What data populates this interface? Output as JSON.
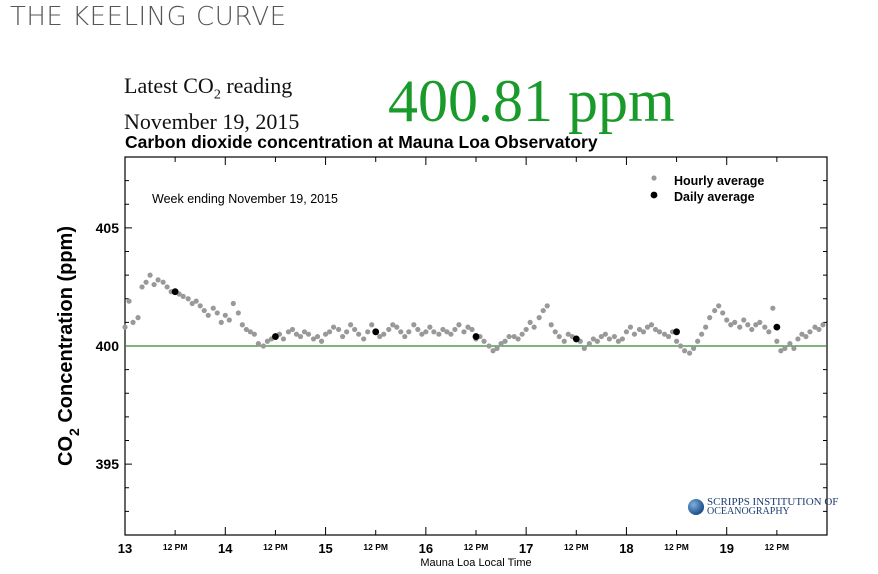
{
  "page": {
    "site_title": "THE KEELING CURVE"
  },
  "latest": {
    "line1_pre": "Latest CO",
    "line1_sub": "2",
    "line1_post": " reading",
    "date": "November 19, 2015",
    "value_text": "400.81 ppm"
  },
  "logo": {
    "line1": "SCRIPPS INSTITUTION OF",
    "line2": "OCEANOGRAPHY"
  },
  "colors": {
    "value_green": "#1a9a2a",
    "hourly_gray": "#999999",
    "daily_black": "#000000",
    "reference_line": "#2e8b2e"
  },
  "chart_data": {
    "type": "scatter",
    "title": "Carbon dioxide concentration at Mauna Loa Observatory",
    "annotation": "Week ending November 19, 2015",
    "xlabel": "Mauna Loa Local Time",
    "ylabel_pre": "CO",
    "ylabel_sub": "2",
    "ylabel_post": " Concentration (ppm)",
    "xlim": [
      13,
      20
    ],
    "ylim": [
      392,
      408
    ],
    "yticks": [
      395,
      400,
      405
    ],
    "xticks_major": [
      {
        "x": 13,
        "label": "13"
      },
      {
        "x": 14,
        "label": "14"
      },
      {
        "x": 15,
        "label": "15"
      },
      {
        "x": 16,
        "label": "16"
      },
      {
        "x": 17,
        "label": "17"
      },
      {
        "x": 18,
        "label": "18"
      },
      {
        "x": 19,
        "label": "19"
      }
    ],
    "xticks_minor": [
      {
        "x": 13.5,
        "label": "12 PM"
      },
      {
        "x": 14.5,
        "label": "12 PM"
      },
      {
        "x": 15.5,
        "label": "12 PM"
      },
      {
        "x": 16.5,
        "label": "12 PM"
      },
      {
        "x": 17.5,
        "label": "12 PM"
      },
      {
        "x": 18.5,
        "label": "12 PM"
      },
      {
        "x": 19.5,
        "label": "12 PM"
      }
    ],
    "reference_line_y": 400,
    "legend_position": "top-right",
    "series": [
      {
        "name": "Hourly average",
        "marker": "gray-dot",
        "points": [
          [
            13.0,
            400.8
          ],
          [
            13.04,
            401.9
          ],
          [
            13.08,
            401.0
          ],
          [
            13.13,
            401.2
          ],
          [
            13.17,
            402.5
          ],
          [
            13.21,
            402.7
          ],
          [
            13.25,
            403.0
          ],
          [
            13.29,
            402.6
          ],
          [
            13.33,
            402.8
          ],
          [
            13.38,
            402.7
          ],
          [
            13.42,
            402.5
          ],
          [
            13.46,
            402.3
          ],
          [
            13.5,
            402.3
          ],
          [
            13.54,
            402.2
          ],
          [
            13.58,
            402.1
          ],
          [
            13.63,
            402.0
          ],
          [
            13.67,
            401.8
          ],
          [
            13.71,
            401.9
          ],
          [
            13.75,
            401.7
          ],
          [
            13.79,
            401.5
          ],
          [
            13.83,
            401.3
          ],
          [
            13.88,
            401.6
          ],
          [
            13.92,
            401.4
          ],
          [
            13.96,
            401.0
          ],
          [
            14.0,
            401.3
          ],
          [
            14.04,
            401.1
          ],
          [
            14.08,
            401.8
          ],
          [
            14.13,
            401.4
          ],
          [
            14.17,
            400.9
          ],
          [
            14.21,
            400.7
          ],
          [
            14.25,
            400.6
          ],
          [
            14.29,
            400.5
          ],
          [
            14.33,
            400.1
          ],
          [
            14.38,
            400.0
          ],
          [
            14.42,
            400.2
          ],
          [
            14.46,
            400.3
          ],
          [
            14.5,
            400.4
          ],
          [
            14.54,
            400.5
          ],
          [
            14.58,
            400.3
          ],
          [
            14.63,
            400.6
          ],
          [
            14.67,
            400.7
          ],
          [
            14.71,
            400.5
          ],
          [
            14.75,
            400.4
          ],
          [
            14.79,
            400.6
          ],
          [
            14.83,
            400.5
          ],
          [
            14.88,
            400.3
          ],
          [
            14.92,
            400.4
          ],
          [
            14.96,
            400.2
          ],
          [
            15.0,
            400.5
          ],
          [
            15.04,
            400.6
          ],
          [
            15.08,
            400.8
          ],
          [
            15.13,
            400.7
          ],
          [
            15.17,
            400.4
          ],
          [
            15.21,
            400.6
          ],
          [
            15.25,
            400.9
          ],
          [
            15.29,
            400.7
          ],
          [
            15.33,
            400.5
          ],
          [
            15.38,
            400.3
          ],
          [
            15.42,
            400.6
          ],
          [
            15.46,
            400.9
          ],
          [
            15.5,
            400.6
          ],
          [
            15.54,
            400.4
          ],
          [
            15.58,
            400.5
          ],
          [
            15.63,
            400.7
          ],
          [
            15.67,
            400.9
          ],
          [
            15.71,
            400.8
          ],
          [
            15.75,
            400.6
          ],
          [
            15.79,
            400.4
          ],
          [
            15.83,
            400.6
          ],
          [
            15.88,
            400.9
          ],
          [
            15.92,
            400.7
          ],
          [
            15.96,
            400.5
          ],
          [
            16.0,
            400.6
          ],
          [
            16.04,
            400.8
          ],
          [
            16.08,
            400.6
          ],
          [
            16.13,
            400.5
          ],
          [
            16.17,
            400.7
          ],
          [
            16.21,
            400.6
          ],
          [
            16.25,
            400.5
          ],
          [
            16.29,
            400.7
          ],
          [
            16.33,
            400.9
          ],
          [
            16.38,
            400.6
          ],
          [
            16.42,
            400.8
          ],
          [
            16.46,
            400.7
          ],
          [
            16.5,
            400.3
          ],
          [
            16.54,
            400.4
          ],
          [
            16.58,
            400.2
          ],
          [
            16.63,
            400.0
          ],
          [
            16.67,
            399.8
          ],
          [
            16.71,
            399.9
          ],
          [
            16.75,
            400.1
          ],
          [
            16.79,
            400.2
          ],
          [
            16.83,
            400.4
          ],
          [
            16.88,
            400.4
          ],
          [
            16.92,
            400.3
          ],
          [
            16.96,
            400.5
          ],
          [
            17.0,
            400.7
          ],
          [
            17.04,
            401.0
          ],
          [
            17.08,
            400.8
          ],
          [
            17.13,
            401.2
          ],
          [
            17.17,
            401.5
          ],
          [
            17.21,
            401.7
          ],
          [
            17.25,
            400.9
          ],
          [
            17.29,
            400.6
          ],
          [
            17.33,
            400.4
          ],
          [
            17.38,
            400.2
          ],
          [
            17.42,
            400.5
          ],
          [
            17.46,
            400.4
          ],
          [
            17.5,
            400.3
          ],
          [
            17.54,
            400.2
          ],
          [
            17.58,
            399.9
          ],
          [
            17.63,
            400.1
          ],
          [
            17.67,
            400.3
          ],
          [
            17.71,
            400.2
          ],
          [
            17.75,
            400.4
          ],
          [
            17.79,
            400.5
          ],
          [
            17.83,
            400.3
          ],
          [
            17.88,
            400.4
          ],
          [
            17.92,
            400.2
          ],
          [
            17.96,
            400.3
          ],
          [
            18.0,
            400.6
          ],
          [
            18.04,
            400.8
          ],
          [
            18.08,
            400.5
          ],
          [
            18.13,
            400.7
          ],
          [
            18.17,
            400.6
          ],
          [
            18.21,
            400.8
          ],
          [
            18.25,
            400.9
          ],
          [
            18.29,
            400.7
          ],
          [
            18.33,
            400.6
          ],
          [
            18.38,
            400.5
          ],
          [
            18.42,
            400.4
          ],
          [
            18.46,
            400.6
          ],
          [
            18.5,
            400.2
          ],
          [
            18.54,
            400.0
          ],
          [
            18.58,
            399.8
          ],
          [
            18.63,
            399.7
          ],
          [
            18.67,
            399.9
          ],
          [
            18.71,
            400.2
          ],
          [
            18.75,
            400.5
          ],
          [
            18.79,
            400.8
          ],
          [
            18.83,
            401.2
          ],
          [
            18.88,
            401.5
          ],
          [
            18.92,
            401.7
          ],
          [
            18.96,
            401.4
          ],
          [
            19.0,
            401.1
          ],
          [
            19.04,
            400.9
          ],
          [
            19.08,
            401.0
          ],
          [
            19.13,
            400.8
          ],
          [
            19.17,
            401.1
          ],
          [
            19.21,
            400.9
          ],
          [
            19.25,
            400.7
          ],
          [
            19.29,
            400.9
          ],
          [
            19.33,
            401.0
          ],
          [
            19.38,
            400.8
          ],
          [
            19.42,
            400.6
          ],
          [
            19.46,
            401.6
          ],
          [
            19.5,
            400.2
          ],
          [
            19.54,
            399.8
          ],
          [
            19.58,
            399.9
          ],
          [
            19.63,
            400.1
          ],
          [
            19.67,
            399.9
          ],
          [
            19.71,
            400.3
          ],
          [
            19.75,
            400.5
          ],
          [
            19.79,
            400.4
          ],
          [
            19.83,
            400.6
          ],
          [
            19.88,
            400.8
          ],
          [
            19.92,
            400.7
          ],
          [
            19.96,
            400.9
          ]
        ]
      },
      {
        "name": "Daily average",
        "marker": "black-dot",
        "points": [
          [
            13.5,
            402.3
          ],
          [
            14.5,
            400.4
          ],
          [
            15.5,
            400.6
          ],
          [
            16.5,
            400.4
          ],
          [
            17.5,
            400.3
          ],
          [
            18.5,
            400.6
          ],
          [
            19.5,
            400.8
          ]
        ]
      }
    ]
  }
}
